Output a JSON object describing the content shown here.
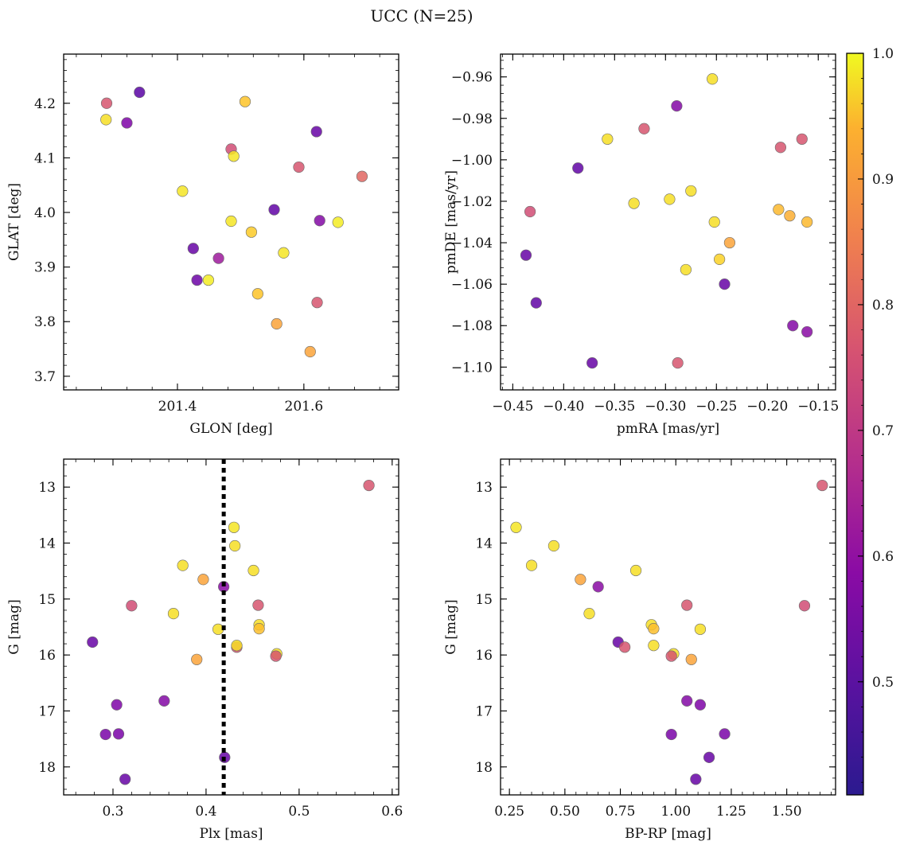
{
  "title": "UCC (N=25)",
  "colorbar": {
    "colormap": "plasma",
    "range": [
      0.41,
      1.0
    ],
    "ticks": [
      0.5,
      0.6,
      0.7,
      0.8,
      0.9,
      1.0
    ],
    "tick_labels": [
      "0.5",
      "0.6",
      "0.7",
      "0.8",
      "0.9",
      "1.0"
    ]
  },
  "chart_data": [
    {
      "type": "scatter",
      "name": "glon-glat",
      "xlabel": "GLON [deg]",
      "ylabel": "GLAT [deg]",
      "xlim": [
        201.22,
        201.75
      ],
      "ylim": [
        3.675,
        4.29
      ],
      "y_inverted": false,
      "xticks": [
        201.4,
        201.6
      ],
      "xtick_labels": [
        "201.4",
        "201.6"
      ],
      "yticks": [
        3.7,
        3.8,
        3.9,
        4.0,
        4.1,
        4.2
      ],
      "ytick_labels": [
        "3.7",
        "3.8",
        "3.9",
        "4.0",
        "4.1",
        "4.2"
      ],
      "points": [
        {
          "x": 201.288,
          "y": 4.2,
          "c": 0.7
        },
        {
          "x": 201.287,
          "y": 4.17,
          "c": 0.96
        },
        {
          "x": 201.34,
          "y": 4.22,
          "c": 0.44
        },
        {
          "x": 201.32,
          "y": 4.164,
          "c": 0.5
        },
        {
          "x": 201.507,
          "y": 4.203,
          "c": 0.92
        },
        {
          "x": 201.485,
          "y": 4.116,
          "c": 0.68
        },
        {
          "x": 201.489,
          "y": 4.103,
          "c": 0.97
        },
        {
          "x": 201.62,
          "y": 4.148,
          "c": 0.46
        },
        {
          "x": 201.592,
          "y": 4.083,
          "c": 0.7
        },
        {
          "x": 201.692,
          "y": 4.066,
          "c": 0.74
        },
        {
          "x": 201.408,
          "y": 4.039,
          "c": 0.97
        },
        {
          "x": 201.553,
          "y": 4.005,
          "c": 0.45
        },
        {
          "x": 201.485,
          "y": 3.984,
          "c": 0.97
        },
        {
          "x": 201.517,
          "y": 3.964,
          "c": 0.93
        },
        {
          "x": 201.625,
          "y": 3.985,
          "c": 0.51
        },
        {
          "x": 201.654,
          "y": 3.982,
          "c": 0.98
        },
        {
          "x": 201.425,
          "y": 3.934,
          "c": 0.46
        },
        {
          "x": 201.465,
          "y": 3.916,
          "c": 0.56
        },
        {
          "x": 201.568,
          "y": 3.926,
          "c": 0.97
        },
        {
          "x": 201.431,
          "y": 3.876,
          "c": 0.47
        },
        {
          "x": 201.449,
          "y": 3.876,
          "c": 0.98
        },
        {
          "x": 201.527,
          "y": 3.851,
          "c": 0.92
        },
        {
          "x": 201.621,
          "y": 3.835,
          "c": 0.7
        },
        {
          "x": 201.557,
          "y": 3.796,
          "c": 0.86
        },
        {
          "x": 201.61,
          "y": 3.745,
          "c": 0.86
        }
      ]
    },
    {
      "type": "scatter",
      "name": "pmra-pmde",
      "xlabel": "pmRA [mas/yr]",
      "ylabel": "pmDE [mas/yr]",
      "xlim": [
        -0.462,
        -0.133
      ],
      "ylim": [
        -1.111,
        -0.949
      ],
      "y_inverted": false,
      "xticks": [
        -0.45,
        -0.4,
        -0.35,
        -0.3,
        -0.25,
        -0.2,
        -0.15
      ],
      "xtick_labels": [
        "−0.45",
        "−0.40",
        "−0.35",
        "−0.30",
        "−0.25",
        "−0.20",
        "−0.15"
      ],
      "yticks": [
        -1.1,
        -1.08,
        -1.06,
        -1.04,
        -1.02,
        -1.0,
        -0.98,
        -0.96
      ],
      "ytick_labels": [
        "−1.10",
        "−1.08",
        "−1.06",
        "−1.04",
        "−1.02",
        "−1.00",
        "−0.98",
        "−0.96"
      ],
      "points": [
        {
          "x": -0.254,
          "y": -0.961,
          "c": 0.96
        },
        {
          "x": -0.289,
          "y": -0.974,
          "c": 0.51
        },
        {
          "x": -0.321,
          "y": -0.985,
          "c": 0.7
        },
        {
          "x": -0.357,
          "y": -0.99,
          "c": 0.96
        },
        {
          "x": -0.166,
          "y": -0.99,
          "c": 0.7
        },
        {
          "x": -0.187,
          "y": -0.994,
          "c": 0.7
        },
        {
          "x": -0.386,
          "y": -1.004,
          "c": 0.45
        },
        {
          "x": -0.275,
          "y": -1.015,
          "c": 0.96
        },
        {
          "x": -0.296,
          "y": -1.019,
          "c": 0.96
        },
        {
          "x": -0.331,
          "y": -1.021,
          "c": 0.96
        },
        {
          "x": -0.189,
          "y": -1.024,
          "c": 0.9
        },
        {
          "x": -0.433,
          "y": -1.025,
          "c": 0.68
        },
        {
          "x": -0.178,
          "y": -1.027,
          "c": 0.88
        },
        {
          "x": -0.161,
          "y": -1.03,
          "c": 0.9
        },
        {
          "x": -0.252,
          "y": -1.03,
          "c": 0.96
        },
        {
          "x": -0.237,
          "y": -1.04,
          "c": 0.86
        },
        {
          "x": -0.437,
          "y": -1.046,
          "c": 0.46
        },
        {
          "x": -0.247,
          "y": -1.048,
          "c": 0.94
        },
        {
          "x": -0.28,
          "y": -1.053,
          "c": 0.96
        },
        {
          "x": -0.242,
          "y": -1.06,
          "c": 0.46
        },
        {
          "x": -0.427,
          "y": -1.069,
          "c": 0.45
        },
        {
          "x": -0.175,
          "y": -1.08,
          "c": 0.51
        },
        {
          "x": -0.161,
          "y": -1.083,
          "c": 0.52
        },
        {
          "x": -0.372,
          "y": -1.098,
          "c": 0.46
        },
        {
          "x": -0.288,
          "y": -1.098,
          "c": 0.7
        }
      ]
    },
    {
      "type": "scatter",
      "name": "plx-g",
      "xlabel": "Plx [mas]",
      "ylabel": "G [mag]",
      "xlim": [
        0.247,
        0.607
      ],
      "ylim": [
        12.5,
        18.5
      ],
      "y_inverted": true,
      "xticks": [
        0.3,
        0.4,
        0.5,
        0.6
      ],
      "xtick_labels": [
        "0.3",
        "0.4",
        "0.5",
        "0.6"
      ],
      "yticks": [
        13,
        14,
        15,
        16,
        17,
        18
      ],
      "ytick_labels": [
        "13",
        "14",
        "15",
        "16",
        "17",
        "18"
      ],
      "vline": 0.419,
      "points": [
        {
          "x": 0.575,
          "y": 12.97,
          "c": 0.7
        },
        {
          "x": 0.43,
          "y": 13.72,
          "c": 0.97
        },
        {
          "x": 0.431,
          "y": 14.05,
          "c": 0.96
        },
        {
          "x": 0.375,
          "y": 14.4,
          "c": 0.96
        },
        {
          "x": 0.451,
          "y": 14.49,
          "c": 0.96
        },
        {
          "x": 0.397,
          "y": 14.65,
          "c": 0.86
        },
        {
          "x": 0.419,
          "y": 14.78,
          "c": 0.52
        },
        {
          "x": 0.32,
          "y": 15.12,
          "c": 0.68
        },
        {
          "x": 0.456,
          "y": 15.11,
          "c": 0.7
        },
        {
          "x": 0.365,
          "y": 15.26,
          "c": 0.96
        },
        {
          "x": 0.457,
          "y": 15.46,
          "c": 0.96
        },
        {
          "x": 0.457,
          "y": 15.53,
          "c": 0.91
        },
        {
          "x": 0.413,
          "y": 15.54,
          "c": 0.96
        },
        {
          "x": 0.278,
          "y": 15.77,
          "c": 0.46
        },
        {
          "x": 0.433,
          "y": 15.86,
          "c": 0.7
        },
        {
          "x": 0.433,
          "y": 15.83,
          "c": 0.96
        },
        {
          "x": 0.476,
          "y": 15.98,
          "c": 0.96
        },
        {
          "x": 0.475,
          "y": 16.02,
          "c": 0.7
        },
        {
          "x": 0.39,
          "y": 16.08,
          "c": 0.86
        },
        {
          "x": 0.355,
          "y": 16.82,
          "c": 0.51
        },
        {
          "x": 0.304,
          "y": 16.89,
          "c": 0.5
        },
        {
          "x": 0.292,
          "y": 17.42,
          "c": 0.49
        },
        {
          "x": 0.306,
          "y": 17.41,
          "c": 0.49
        },
        {
          "x": 0.42,
          "y": 17.83,
          "c": 0.46
        },
        {
          "x": 0.313,
          "y": 18.22,
          "c": 0.46
        }
      ]
    },
    {
      "type": "scatter",
      "name": "bprp-g",
      "xlabel": "BP-RP [mag]",
      "ylabel": "G [mag]",
      "xlim": [
        0.21,
        1.72
      ],
      "ylim": [
        12.5,
        18.5
      ],
      "y_inverted": true,
      "xticks": [
        0.25,
        0.5,
        0.75,
        1.0,
        1.25,
        1.5
      ],
      "xtick_labels": [
        "0.25",
        "0.50",
        "0.75",
        "1.00",
        "1.25",
        "1.50"
      ],
      "yticks": [
        13,
        14,
        15,
        16,
        17,
        18
      ],
      "ytick_labels": [
        "13",
        "14",
        "15",
        "16",
        "17",
        "18"
      ],
      "points": [
        {
          "x": 1.66,
          "y": 12.97,
          "c": 0.7
        },
        {
          "x": 0.28,
          "y": 13.72,
          "c": 0.97
        },
        {
          "x": 0.45,
          "y": 14.05,
          "c": 0.96
        },
        {
          "x": 0.35,
          "y": 14.4,
          "c": 0.96
        },
        {
          "x": 0.82,
          "y": 14.49,
          "c": 0.96
        },
        {
          "x": 0.57,
          "y": 14.65,
          "c": 0.86
        },
        {
          "x": 0.65,
          "y": 14.78,
          "c": 0.52
        },
        {
          "x": 1.05,
          "y": 15.11,
          "c": 0.7
        },
        {
          "x": 1.58,
          "y": 15.12,
          "c": 0.68
        },
        {
          "x": 0.61,
          "y": 15.26,
          "c": 0.96
        },
        {
          "x": 0.89,
          "y": 15.46,
          "c": 0.96
        },
        {
          "x": 0.9,
          "y": 15.53,
          "c": 0.91
        },
        {
          "x": 1.11,
          "y": 15.54,
          "c": 0.96
        },
        {
          "x": 0.74,
          "y": 15.77,
          "c": 0.46
        },
        {
          "x": 0.77,
          "y": 15.86,
          "c": 0.7
        },
        {
          "x": 0.9,
          "y": 15.83,
          "c": 0.96
        },
        {
          "x": 0.99,
          "y": 15.98,
          "c": 0.96
        },
        {
          "x": 0.98,
          "y": 16.02,
          "c": 0.7
        },
        {
          "x": 1.07,
          "y": 16.08,
          "c": 0.86
        },
        {
          "x": 1.05,
          "y": 16.82,
          "c": 0.51
        },
        {
          "x": 1.11,
          "y": 16.89,
          "c": 0.5
        },
        {
          "x": 0.98,
          "y": 17.42,
          "c": 0.49
        },
        {
          "x": 1.22,
          "y": 17.41,
          "c": 0.49
        },
        {
          "x": 1.15,
          "y": 17.83,
          "c": 0.46
        },
        {
          "x": 1.09,
          "y": 18.22,
          "c": 0.46
        }
      ]
    }
  ]
}
